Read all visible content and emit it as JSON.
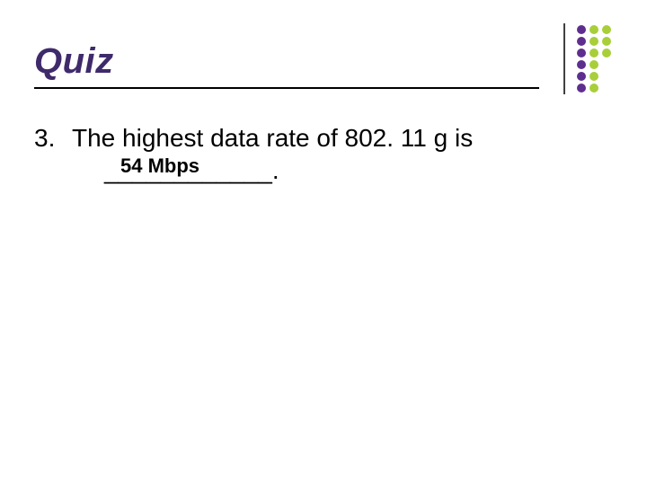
{
  "slide": {
    "title": "Quiz",
    "title_color": "#3f2a6b",
    "question": {
      "number": "3.",
      "text_line1": "The highest data rate of 802. 11 g is",
      "blank": "____________.",
      "answer": "54 Mbps",
      "answer_color": "#000000"
    },
    "ornament": {
      "vertical_rule_color": "#000000",
      "dot_radius": 5,
      "col_gap": 14,
      "row_gap": 13,
      "columns": [
        {
          "color": "#5e2e8f",
          "rows": 6
        },
        {
          "color": "#a8cf3a",
          "rows": 6
        },
        {
          "color": "#a8cf3a",
          "rows": 3
        }
      ]
    }
  }
}
